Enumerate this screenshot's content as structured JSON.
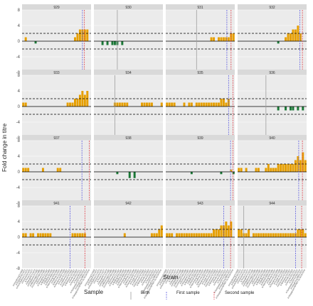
{
  "chart_data": {
    "type": "bar",
    "xlabel": "Strain",
    "ylabel": "Fold change in titre",
    "ylim": [
      -8,
      8
    ],
    "yticks": [
      -8,
      -4,
      0,
      4,
      8
    ],
    "threshold_lines": [
      2,
      -2
    ],
    "colors": {
      "positive": "#E69F00",
      "negative": "#1B7837",
      "birth": "#9E9E9E",
      "first_sample": "#5B5BE0",
      "second_sample": "#E0404A",
      "strip": "#D9D9D9",
      "panel_bg": "#EBEBEB"
    },
    "strains": [
      "A/HongKong/1/1968",
      "A/England/42/1972",
      "A/PortChalmers/1/1973",
      "A/Victoria/3/1975",
      "A/Texas/1/1977",
      "A/Bangkok/1/1979",
      "A/Philippines/2/1982",
      "A/Mississippi/1/1985",
      "A/Leningrad/360/1986",
      "A/Sichuan/2/1987",
      "A/Shanghai/11/1987",
      "A/Beijing/353/1989",
      "A/Beijing/32/1992",
      "A/Wuhan/359/1995",
      "A/Nanchang/933/1995",
      "A/Sydney/5/1997",
      "A/Moscow/10/1999",
      "A/Panama/2007/1999",
      "A/Fujian/411/2002",
      "A/California/7/2004",
      "A/Wisconsin/67/2005",
      "A/Brisbane/10/2007",
      "A/Perth/16/2009",
      "A/Victoria/361/2011",
      "A/Texas/50/2012",
      "A/Switzerland/9715293/2013",
      "A/HongKong/4801/2014",
      "A/Singapore/INFIMH-16-0019/2016"
    ],
    "panels": [
      {
        "id": "929",
        "values": [
          0,
          1,
          0,
          0,
          0,
          -0.6,
          0,
          0,
          0,
          0,
          0,
          0,
          0,
          0,
          0,
          0,
          0,
          0,
          0,
          0,
          0,
          1,
          2,
          3,
          3,
          3,
          3,
          0
        ],
        "birth": null,
        "first_sample": 24.5,
        "second_sample": 25.3
      },
      {
        "id": "930",
        "values": [
          0,
          0,
          0,
          -1,
          0,
          -1,
          0,
          -1,
          -1,
          -1,
          0,
          -1,
          0,
          0,
          0,
          0,
          0,
          0,
          0,
          0,
          0,
          0,
          0,
          0,
          0,
          0,
          0,
          0
        ],
        "birth": 9.5,
        "first_sample": null,
        "second_sample": null
      },
      {
        "id": "931",
        "values": [
          0,
          0,
          0,
          0,
          0,
          0,
          0,
          0,
          0,
          0,
          0,
          0,
          0,
          0,
          0,
          0,
          0,
          0,
          1,
          1,
          0,
          1,
          1,
          1,
          1,
          1,
          2,
          2
        ],
        "birth": 12.5,
        "first_sample": 24.8,
        "second_sample": 26.5
      },
      {
        "id": "932",
        "values": [
          0,
          0,
          0,
          0,
          0,
          0,
          0,
          0,
          0,
          0,
          0,
          0,
          0,
          0,
          0,
          0,
          -0.6,
          0,
          0,
          1,
          2,
          2,
          3,
          3,
          4,
          2,
          0,
          0
        ],
        "birth": null,
        "first_sample": 25.3,
        "second_sample": 26.3
      },
      {
        "id": "933",
        "values": [
          1,
          1,
          0,
          0,
          0,
          0,
          0,
          0,
          0,
          0,
          0,
          0,
          0,
          0,
          0,
          0,
          0,
          0,
          1,
          1,
          1,
          2,
          2,
          3,
          4,
          3,
          4,
          0
        ],
        "birth": null,
        "first_sample": null,
        "second_sample": null
      },
      {
        "id": "934",
        "values": [
          0,
          0,
          0,
          0,
          0,
          0,
          0,
          0,
          1,
          1,
          1,
          1,
          1,
          1,
          0,
          0,
          0,
          0,
          0,
          1,
          1,
          1,
          1,
          1,
          0,
          0,
          0,
          1
        ],
        "birth": 8.5,
        "first_sample": null,
        "second_sample": null
      },
      {
        "id": "935",
        "values": [
          1,
          1,
          1,
          1,
          0,
          0,
          0,
          1,
          0,
          1,
          1,
          0,
          1,
          1,
          1,
          1,
          1,
          1,
          1,
          1,
          1,
          1,
          2,
          2,
          1,
          2,
          0,
          0
        ],
        "birth": null,
        "first_sample": 25.5,
        "second_sample": 27.3
      },
      {
        "id": "936",
        "values": [
          0,
          0,
          0,
          0,
          0,
          0,
          0,
          0,
          0,
          0,
          0,
          0,
          0,
          0,
          0,
          0,
          -1,
          0,
          0,
          -1,
          0,
          -1,
          -1,
          0,
          -1,
          0,
          -1,
          0
        ],
        "birth": 11.5,
        "first_sample": null,
        "second_sample": null
      },
      {
        "id": "937",
        "values": [
          1,
          1,
          1,
          0,
          0,
          0,
          0,
          0,
          1,
          0,
          0,
          0,
          0,
          0,
          1,
          1,
          0,
          0,
          0,
          0,
          0,
          0,
          0,
          0,
          0,
          0,
          0,
          0
        ],
        "birth": null,
        "first_sample": 24.3,
        "second_sample": 27.3
      },
      {
        "id": "938",
        "values": [
          0,
          0,
          0,
          0,
          0,
          0,
          0,
          0,
          0,
          -0.6,
          0,
          0,
          0,
          0,
          -1.6,
          0,
          -1.6,
          0,
          0,
          0,
          0,
          0,
          0,
          0,
          0,
          0,
          0,
          0
        ],
        "birth": null,
        "first_sample": null,
        "second_sample": null
      },
      {
        "id": "939",
        "values": [
          0,
          0,
          0,
          0,
          0,
          0,
          0,
          0,
          0,
          0,
          -0.6,
          0,
          0,
          0,
          0,
          0,
          0,
          0,
          0,
          0,
          0,
          0,
          -0.6,
          0,
          0,
          0,
          0.6,
          -0.6
        ],
        "birth": null,
        "first_sample": 26.3,
        "second_sample": 27.3
      },
      {
        "id": "940",
        "values": [
          1,
          1,
          0,
          1,
          0,
          0,
          0,
          1,
          1,
          0,
          0,
          1,
          2,
          1,
          1,
          1,
          2,
          2,
          2,
          2,
          2,
          2,
          2,
          3,
          4,
          3,
          5,
          3
        ],
        "birth": null,
        "first_sample": 24.8,
        "second_sample": 26.3
      },
      {
        "id": "941",
        "values": [
          1,
          1,
          0,
          1,
          1,
          0,
          1,
          1,
          1,
          1,
          1,
          1,
          0,
          0,
          0,
          0,
          0,
          0,
          0,
          0,
          1,
          1,
          1,
          1,
          1,
          1,
          0,
          0
        ],
        "birth": null,
        "first_sample": 19.5,
        "second_sample": 25.5
      },
      {
        "id": "942",
        "values": [
          0,
          0,
          0,
          0,
          0,
          0,
          0,
          0,
          0,
          0,
          0,
          0,
          1,
          0,
          0,
          0,
          0,
          0,
          0,
          0,
          0,
          0,
          0,
          1,
          1,
          1,
          2,
          3
        ],
        "birth": null,
        "first_sample": null,
        "second_sample": null
      },
      {
        "id": "943",
        "values": [
          1,
          1,
          1,
          0,
          1,
          1,
          1,
          1,
          1,
          1,
          1,
          1,
          1,
          1,
          1,
          1,
          1,
          1,
          1,
          2,
          2,
          2,
          3,
          3,
          4,
          3,
          4,
          0
        ],
        "birth": null,
        "first_sample": 23.5,
        "second_sample": 26.3
      },
      {
        "id": "944",
        "values": [
          2,
          2,
          1,
          1,
          2,
          0,
          1,
          1,
          1,
          1,
          1,
          1,
          1,
          1,
          1,
          1,
          1,
          1,
          1,
          1,
          1,
          1,
          1,
          1,
          2,
          2,
          2,
          1
        ],
        "birth": 2.5,
        "first_sample": 23.5,
        "second_sample": 26.0
      }
    ],
    "legend": {
      "title": "Sample",
      "entries": [
        "Birth",
        "First sample",
        "Second sample"
      ],
      "placement": "bottom"
    }
  }
}
